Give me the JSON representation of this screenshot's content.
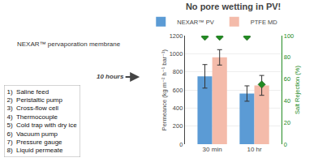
{
  "chart_data": {
    "type": "bar",
    "title": "No pore wetting in PV!",
    "categories": [
      "30 min",
      "10 hr"
    ],
    "series": [
      {
        "name": "NEXAR™ PV",
        "color": "#5B9BD5",
        "values": [
          750,
          560
        ],
        "errors": [
          130,
          85
        ]
      },
      {
        "name": "PTFE MD",
        "color": "#F4BBAA",
        "values": [
          960,
          650
        ],
        "errors": [
          85,
          110
        ]
      },
      {
        "type": "scatter",
        "marker": "diamond",
        "axis": "y2",
        "color": "#228B22",
        "values": [
          99,
          99
        ]
      },
      {
        "type": "scatter",
        "marker": "diamond",
        "axis": "y2",
        "color": "#228B22",
        "values": [
          99,
          55
        ]
      }
    ],
    "ylabel": "Permeance (kg m⁻² h⁻¹ bar⁻¹)",
    "y2label": "Salt Rejection (%)",
    "ylim": [
      0,
      1200
    ],
    "yticks": [
      0,
      200,
      400,
      600,
      800,
      1000,
      1200
    ],
    "y2lim": [
      0,
      100
    ],
    "y2ticks": [
      0,
      20,
      40,
      60,
      80,
      100
    ],
    "grid": true,
    "legend": "upper right",
    "annotations": [
      "1)  Saline feed",
      "2)  Peristaltic pump",
      "3)  Cross-flow cell",
      "4)  Thermocouple",
      "5)  Cold trap with dry ice",
      "6)  Vacuum pump",
      "7)  Pressure gauge",
      "8)  Liquid permeate",
      "NEXAR™ pervaporation membrane",
      "10 hours"
    ]
  }
}
